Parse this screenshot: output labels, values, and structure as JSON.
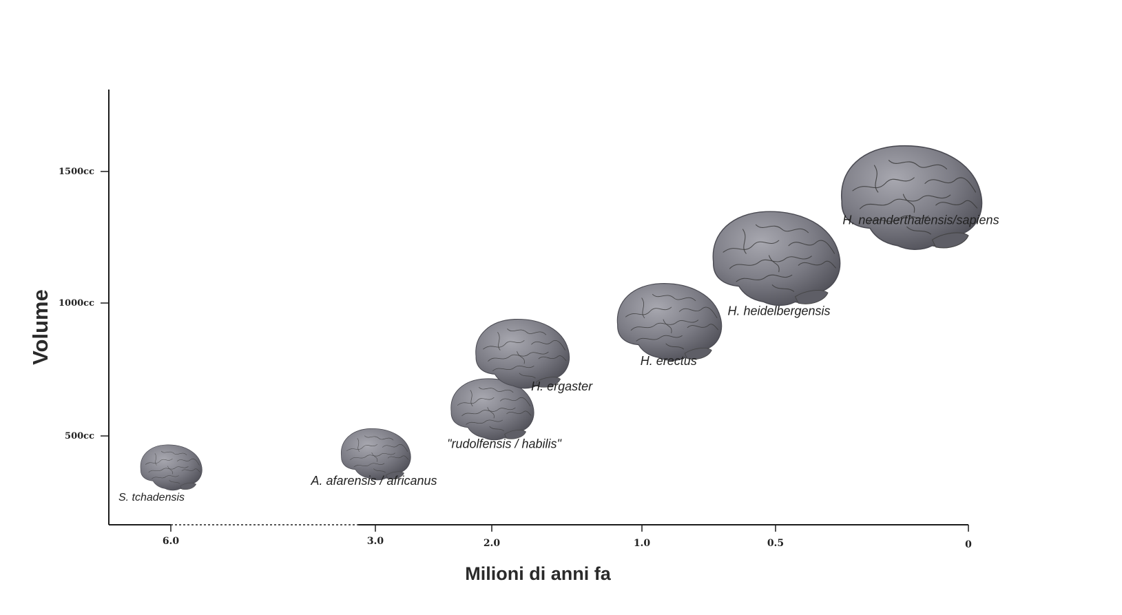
{
  "chart_data": {
    "type": "scatter",
    "title": "",
    "xlabel": "Milioni di anni fa",
    "ylabel": "Volume",
    "x_ticks": [
      "6.0",
      "3.0",
      "2.0",
      "1.0",
      "0.5",
      "0"
    ],
    "y_ticks": [
      "500cc",
      "1000cc",
      "1500cc"
    ],
    "points": [
      {
        "label": "S. tchadensis",
        "x": 6.0,
        "y": 380
      },
      {
        "label": "A. afarensis / africanus",
        "x": 3.0,
        "y": 430
      },
      {
        "label": "\"rudolfensis / habilis\"",
        "x": 2.0,
        "y": 600
      },
      {
        "label": "H. ergaster",
        "x": 1.8,
        "y": 810
      },
      {
        "label": "H. erectus",
        "x": 0.9,
        "y": 930
      },
      {
        "label": "H. heidelbergensis",
        "x": 0.5,
        "y": 1170
      },
      {
        "label": "H. neanderthalensis/sapiens",
        "x": 0.15,
        "y": 1400
      }
    ],
    "colors": {
      "brain": "#7b7b84",
      "brain_highlight": "#a8a8b0",
      "brain_shadow": "#4a4a52",
      "axis": "#1a1a1a"
    }
  }
}
